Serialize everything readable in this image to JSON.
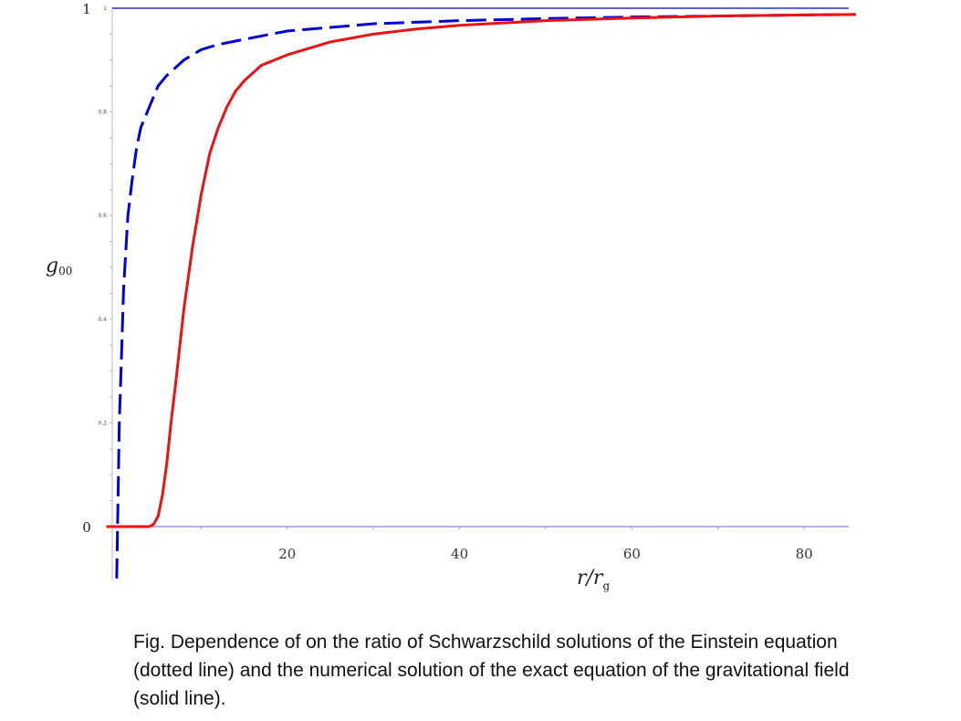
{
  "chart_data": {
    "type": "line",
    "xlabel": {
      "main": "r/r",
      "sub": "g"
    },
    "ylabel": {
      "main": "g",
      "sub": "00"
    },
    "xlim": [
      -1,
      86
    ],
    "ylim": [
      -0.1,
      1.0
    ],
    "x_ticks": [
      {
        "value": 20,
        "label": "20"
      },
      {
        "value": 40,
        "label": "40"
      },
      {
        "value": 60,
        "label": "60"
      },
      {
        "value": 80,
        "label": "80"
      }
    ],
    "y_ticks_small": [
      {
        "value": 1.0,
        "label": "1"
      },
      {
        "value": 0.8,
        "label": "0.8"
      },
      {
        "value": 0.6,
        "label": "0.6"
      },
      {
        "value": 0.4,
        "label": "0.4"
      },
      {
        "value": 0.2,
        "label": "0.2"
      }
    ],
    "y_ticks_big": [
      {
        "value": 1.0,
        "label": "1"
      },
      {
        "value": 0.0,
        "label": "0"
      }
    ],
    "reference_line": {
      "y": 1.0,
      "color": "#0000cc"
    },
    "series": [
      {
        "style": "dashed",
        "color": "#0000dd",
        "x": [
          0.2,
          0.3,
          0.5,
          0.7,
          1.0,
          1.5,
          2,
          2.5,
          3,
          4,
          5,
          6,
          8,
          10,
          12,
          15,
          20,
          25,
          30,
          40,
          50,
          60,
          70,
          80,
          86
        ],
        "y": [
          -0.1,
          0.0,
          0.2,
          0.3,
          0.46,
          0.6,
          0.67,
          0.73,
          0.77,
          0.81,
          0.85,
          0.87,
          0.9,
          0.92,
          0.93,
          0.94,
          0.956,
          0.963,
          0.97,
          0.976,
          0.98,
          0.983,
          0.985,
          0.987,
          0.988
        ]
      },
      {
        "style": "solid",
        "color": "#ee1111",
        "x": [
          -1,
          4,
          4.5,
          5,
          5.5,
          6,
          6.5,
          7,
          8,
          9,
          10,
          11,
          12,
          13,
          14,
          15,
          17,
          20,
          25,
          30,
          35,
          40,
          50,
          60,
          70,
          80,
          86
        ],
        "y": [
          0,
          0,
          0.005,
          0.02,
          0.06,
          0.12,
          0.2,
          0.27,
          0.42,
          0.54,
          0.64,
          0.72,
          0.77,
          0.81,
          0.84,
          0.86,
          0.89,
          0.91,
          0.935,
          0.95,
          0.96,
          0.967,
          0.976,
          0.981,
          0.985,
          0.987,
          0.988
        ]
      }
    ]
  },
  "caption": "Fig. Dependence of  on the ratio of   Schwarzschild solutions of the Einstein equation (dotted line) and the numerical solution of the exact equation of the gravitational field (solid line)."
}
